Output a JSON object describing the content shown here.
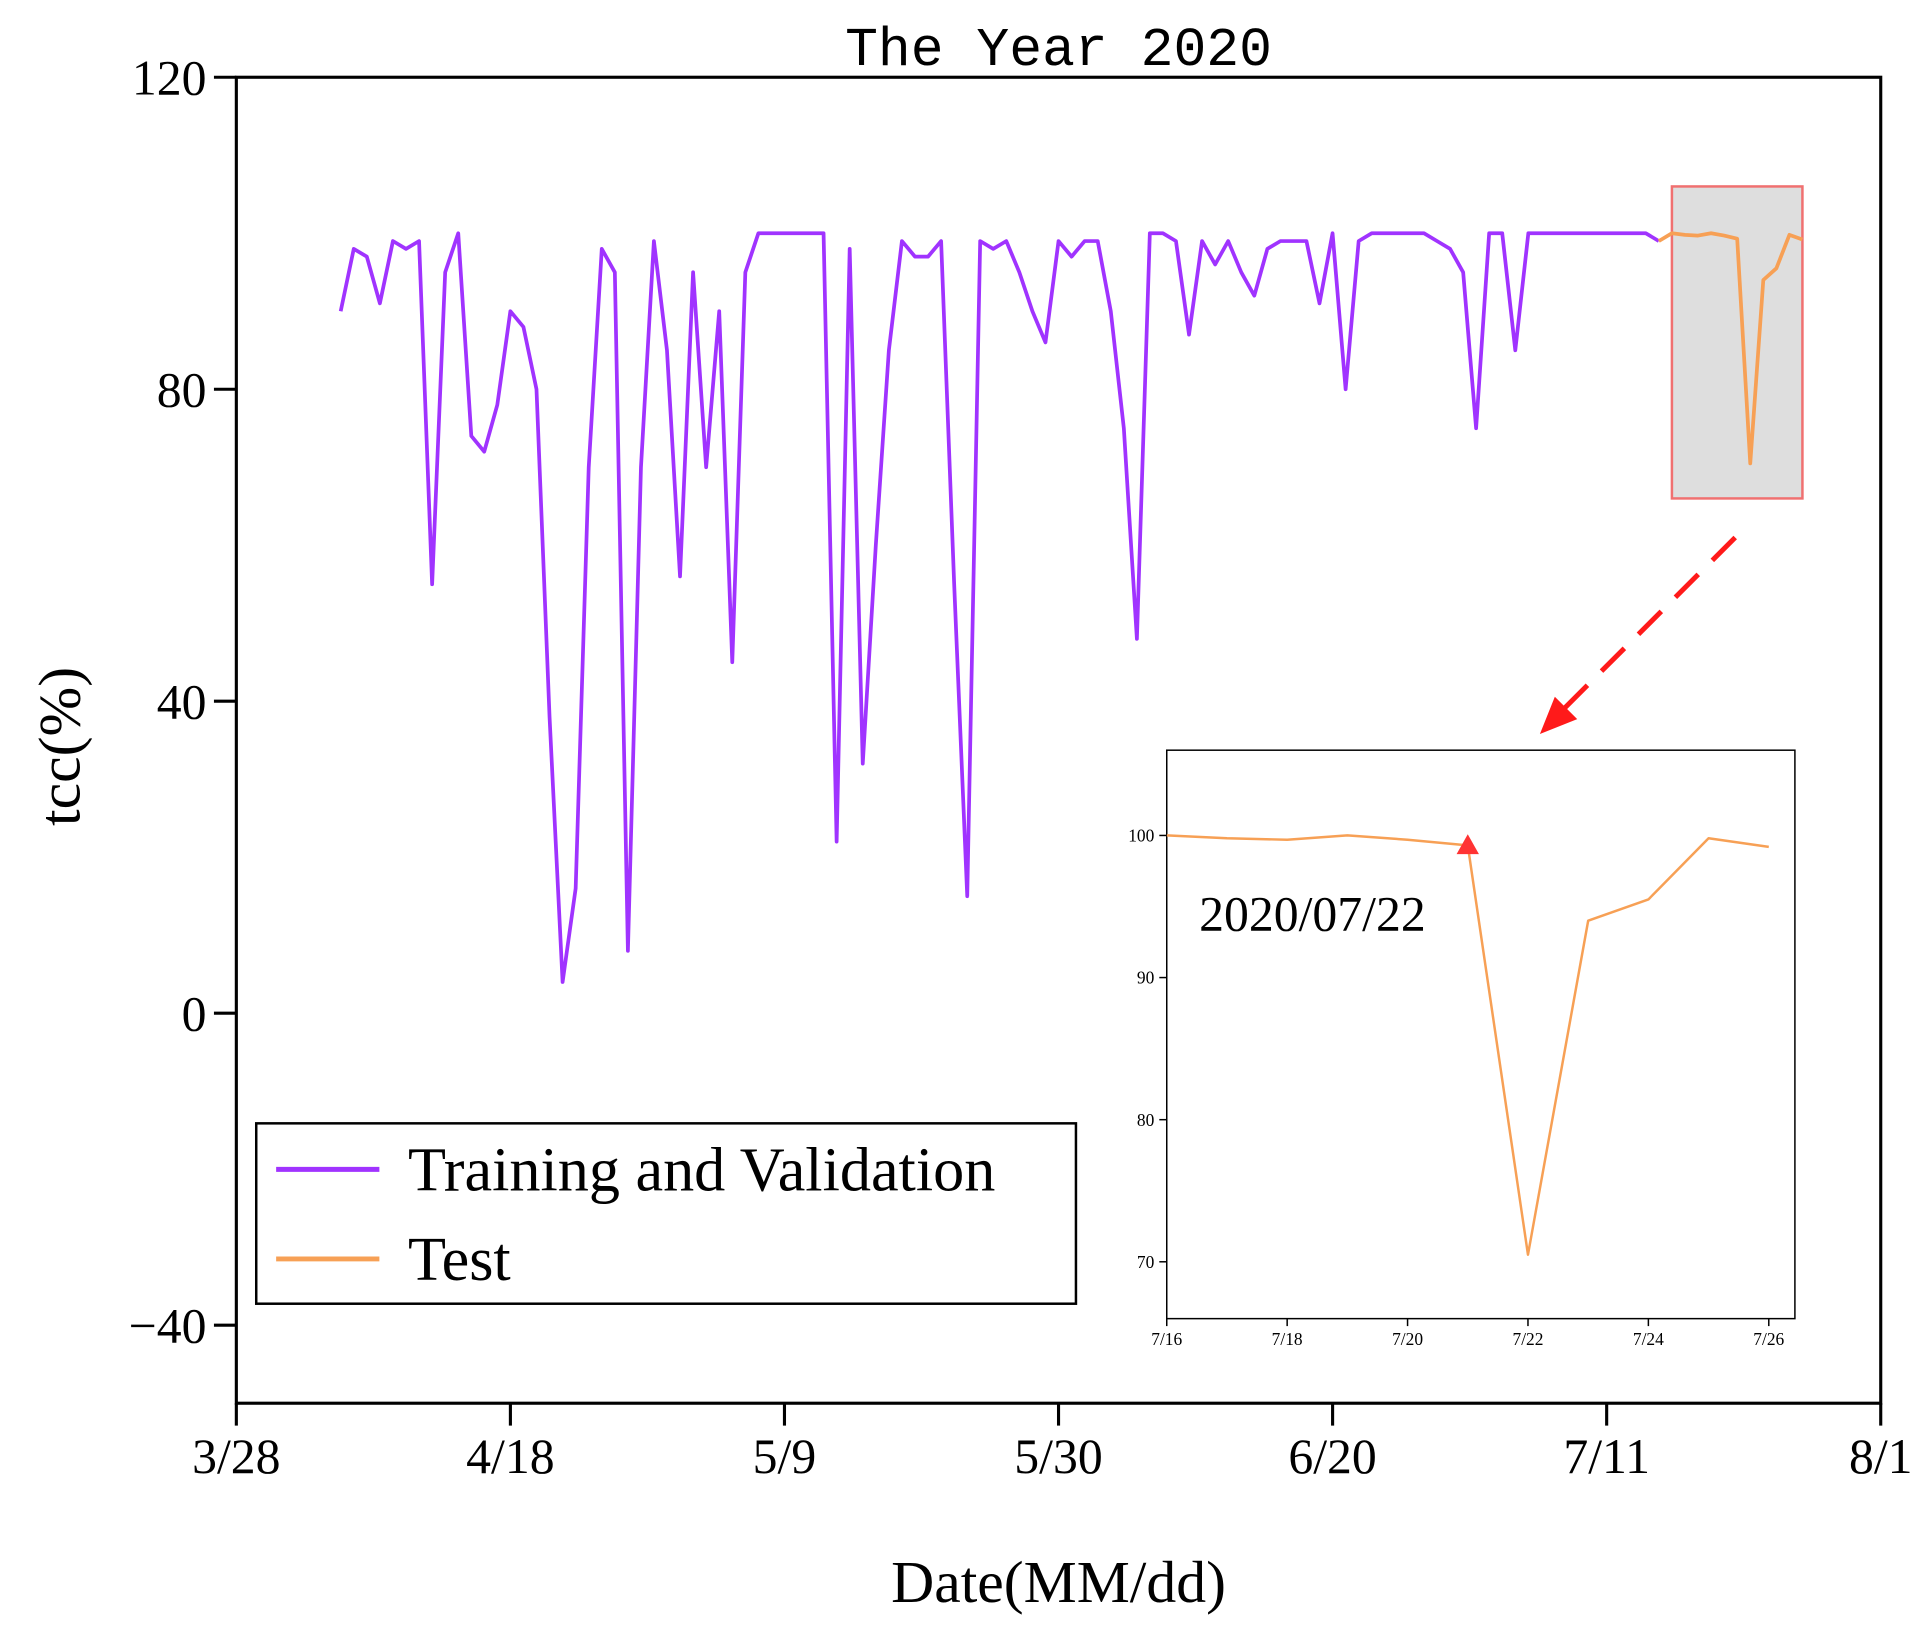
{
  "chart_data": [
    {
      "type": "line",
      "title": "The Year 2020",
      "x_label": "Date(MM/dd)",
      "y_label": "tcc(%)",
      "xlim": [
        "3/28",
        "8/1"
      ],
      "xticks": [
        "3/28",
        "4/18",
        "5/9",
        "5/30",
        "6/20",
        "7/11",
        "8/1"
      ],
      "ylim": [
        -50,
        120
      ],
      "yticks": [
        120,
        80,
        40,
        0,
        {
          "value": -40,
          "label": "−40"
        }
      ],
      "legend": "lower left",
      "series": [
        {
          "name": "Training and Validation",
          "color": "#a033ff",
          "x": [
            "4/5",
            "4/6",
            "4/7",
            "4/8",
            "4/9",
            "4/10",
            "4/11",
            "4/12",
            "4/13",
            "4/14",
            "4/15",
            "4/16",
            "4/17",
            "4/18",
            "4/19",
            "4/20",
            "4/21",
            "4/22",
            "4/23",
            "4/24",
            "4/25",
            "4/26",
            "4/27",
            "4/28",
            "4/29",
            "4/30",
            "5/1",
            "5/2",
            "5/3",
            "5/4",
            "5/5",
            "5/6",
            "5/7",
            "5/8",
            "5/9",
            "5/10",
            "5/11",
            "5/12",
            "5/13",
            "5/14",
            "5/15",
            "5/16",
            "5/17",
            "5/18",
            "5/19",
            "5/20",
            "5/21",
            "5/22",
            "5/23",
            "5/24",
            "5/25",
            "5/26",
            "5/27",
            "5/28",
            "5/29",
            "5/30",
            "5/31",
            "6/1",
            "6/2",
            "6/3",
            "6/4",
            "6/5",
            "6/6",
            "6/7",
            "6/8",
            "6/9",
            "6/10",
            "6/11",
            "6/12",
            "6/13",
            "6/14",
            "6/15",
            "6/16",
            "6/17",
            "6/18",
            "6/19",
            "6/20",
            "6/21",
            "6/22",
            "6/23",
            "6/24",
            "6/25",
            "6/26",
            "6/27",
            "6/28",
            "6/29",
            "6/30",
            "7/1",
            "7/2",
            "7/3",
            "7/4",
            "7/5",
            "7/6",
            "7/7",
            "7/8",
            "7/9",
            "7/10",
            "7/11",
            "7/12",
            "7/13",
            "7/14",
            "7/15"
          ],
          "values": [
            90,
            98,
            97,
            91,
            99,
            98,
            99,
            55,
            95,
            100,
            74,
            72,
            78,
            90,
            88,
            80,
            38,
            4,
            16,
            70,
            98,
            95,
            8,
            70,
            99,
            85,
            56,
            95,
            70,
            90,
            45,
            95,
            100,
            100,
            100,
            100,
            100,
            100,
            22,
            98,
            32,
            60,
            85,
            99,
            97,
            97,
            99,
            55,
            15,
            99,
            98,
            99,
            95,
            90,
            86,
            99,
            97,
            99,
            99,
            90,
            75,
            48,
            100,
            100,
            99,
            87,
            99,
            96,
            99,
            95,
            92,
            98,
            99,
            99,
            99,
            91,
            100,
            80,
            99,
            100,
            100,
            100,
            100,
            100,
            99,
            98,
            95,
            75,
            100,
            100,
            85,
            100,
            100,
            100,
            100,
            100,
            100,
            100,
            100,
            100,
            100,
            99
          ]
        },
        {
          "name": "Test",
          "color": "#f7a055",
          "x": [
            "7/15",
            "7/16",
            "7/17",
            "7/18",
            "7/19",
            "7/20",
            "7/21",
            "7/22",
            "7/23",
            "7/24",
            "7/25",
            "7/26"
          ],
          "values": [
            99,
            100,
            99.8,
            99.7,
            100,
            99.7,
            99.3,
            70.5,
            94,
            95.5,
            99.8,
            99.2
          ]
        }
      ]
    },
    {
      "type": "line",
      "annotation": "2020/07/22",
      "xlim": [
        "7/16",
        "7/26"
      ],
      "xticks": [
        "7/16",
        "7/18",
        "7/20",
        "7/22",
        "7/24",
        "7/26"
      ],
      "ylim": [
        66,
        106
      ],
      "yticks": [
        70,
        80,
        90,
        100
      ],
      "marker": {
        "x": "7/21",
        "value": 99.3,
        "color": "#ff3333"
      },
      "series": [
        {
          "color": "#f7a055",
          "x": [
            "7/16",
            "7/17",
            "7/18",
            "7/19",
            "7/20",
            "7/21",
            "7/22",
            "7/23",
            "7/24",
            "7/25",
            "7/26"
          ],
          "values": [
            100,
            99.8,
            99.7,
            100,
            99.7,
            99.3,
            70.5,
            94,
            95.5,
            99.8,
            99.2
          ]
        }
      ]
    }
  ]
}
